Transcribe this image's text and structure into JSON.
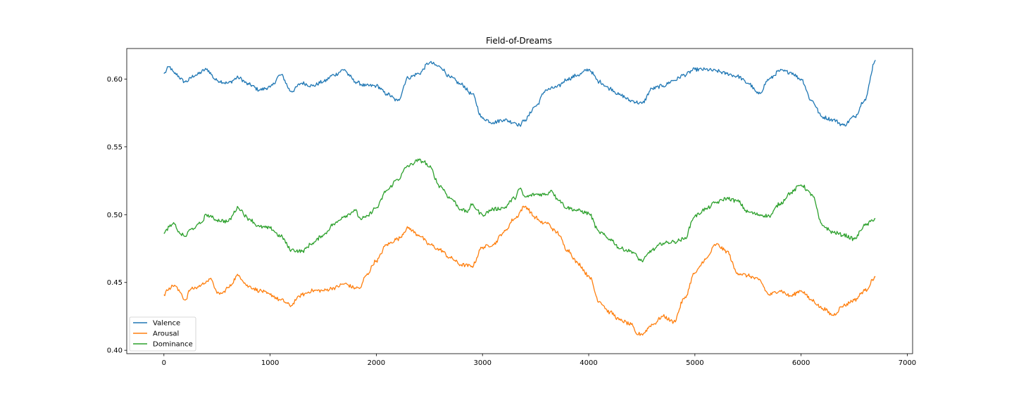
{
  "chart_data": {
    "type": "line",
    "title": "Field-of-Dreams",
    "xlabel": "",
    "ylabel": "",
    "xlim": [
      -350,
      7050
    ],
    "ylim": [
      0.3975,
      0.6225
    ],
    "xticks": [
      0,
      1000,
      2000,
      3000,
      4000,
      5000,
      6000,
      7000
    ],
    "xtick_labels": [
      "0",
      "1000",
      "2000",
      "3000",
      "4000",
      "5000",
      "6000",
      "7000"
    ],
    "yticks": [
      0.4,
      0.45,
      0.5,
      0.55,
      0.6
    ],
    "ytick_labels": [
      "0.40",
      "0.45",
      "0.50",
      "0.55",
      "0.60"
    ],
    "grid": false,
    "legend_position": "lower-left",
    "series": [
      {
        "name": "Valence",
        "color": "#1f77b4",
        "x": [
          0,
          50,
          100,
          200,
          300,
          400,
          500,
          600,
          700,
          800,
          900,
          1000,
          1100,
          1200,
          1300,
          1400,
          1500,
          1600,
          1700,
          1750,
          1800,
          1900,
          2000,
          2100,
          2200,
          2300,
          2400,
          2500,
          2600,
          2700,
          2800,
          2900,
          3000,
          3100,
          3200,
          3300,
          3350,
          3400,
          3500,
          3600,
          3700,
          3800,
          3900,
          4000,
          4100,
          4200,
          4300,
          4400,
          4500,
          4600,
          4700,
          4800,
          4900,
          5000,
          5100,
          5200,
          5300,
          5400,
          5500,
          5600,
          5700,
          5800,
          5900,
          6000,
          6100,
          6200,
          6300,
          6400,
          6500,
          6600,
          6700
        ],
        "values": [
          0.604,
          0.609,
          0.604,
          0.598,
          0.603,
          0.607,
          0.599,
          0.597,
          0.601,
          0.596,
          0.592,
          0.594,
          0.603,
          0.591,
          0.597,
          0.595,
          0.598,
          0.603,
          0.607,
          0.602,
          0.598,
          0.595,
          0.595,
          0.589,
          0.584,
          0.601,
          0.604,
          0.612,
          0.609,
          0.601,
          0.596,
          0.589,
          0.571,
          0.568,
          0.57,
          0.568,
          0.566,
          0.57,
          0.58,
          0.592,
          0.594,
          0.6,
          0.603,
          0.607,
          0.598,
          0.593,
          0.588,
          0.584,
          0.582,
          0.593,
          0.595,
          0.599,
          0.603,
          0.607,
          0.607,
          0.606,
          0.604,
          0.602,
          0.597,
          0.589,
          0.6,
          0.606,
          0.605,
          0.6,
          0.584,
          0.572,
          0.57,
          0.566,
          0.572,
          0.585,
          0.614
        ]
      },
      {
        "name": "Arousal",
        "color": "#ff7f0e",
        "x": [
          0,
          50,
          100,
          150,
          200,
          250,
          300,
          350,
          400,
          450,
          500,
          550,
          600,
          700,
          800,
          900,
          1000,
          1100,
          1200,
          1250,
          1300,
          1400,
          1500,
          1600,
          1700,
          1800,
          1850,
          1900,
          2000,
          2100,
          2200,
          2300,
          2400,
          2500,
          2600,
          2700,
          2800,
          2900,
          3000,
          3100,
          3200,
          3300,
          3400,
          3500,
          3550,
          3600,
          3700,
          3800,
          3900,
          4000,
          4100,
          4200,
          4300,
          4400,
          4450,
          4500,
          4600,
          4700,
          4800,
          4900,
          5000,
          5100,
          5200,
          5300,
          5400,
          5500,
          5600,
          5700,
          5800,
          5900,
          6000,
          6100,
          6200,
          6300,
          6400,
          6500,
          6600,
          6700
        ],
        "values": [
          0.441,
          0.446,
          0.448,
          0.443,
          0.437,
          0.445,
          0.446,
          0.448,
          0.451,
          0.452,
          0.442,
          0.442,
          0.446,
          0.455,
          0.447,
          0.444,
          0.441,
          0.437,
          0.433,
          0.438,
          0.441,
          0.444,
          0.444,
          0.446,
          0.449,
          0.446,
          0.446,
          0.455,
          0.466,
          0.478,
          0.482,
          0.49,
          0.485,
          0.478,
          0.474,
          0.468,
          0.463,
          0.462,
          0.476,
          0.478,
          0.487,
          0.497,
          0.506,
          0.498,
          0.494,
          0.494,
          0.487,
          0.474,
          0.464,
          0.455,
          0.436,
          0.428,
          0.422,
          0.419,
          0.412,
          0.412,
          0.419,
          0.425,
          0.421,
          0.438,
          0.457,
          0.467,
          0.478,
          0.473,
          0.457,
          0.455,
          0.452,
          0.441,
          0.444,
          0.44,
          0.444,
          0.437,
          0.431,
          0.426,
          0.433,
          0.437,
          0.444,
          0.454
        ]
      },
      {
        "name": "Dominance",
        "color": "#2ca02c",
        "x": [
          0,
          50,
          100,
          150,
          200,
          250,
          300,
          350,
          400,
          450,
          500,
          600,
          700,
          800,
          900,
          1000,
          1100,
          1200,
          1300,
          1400,
          1500,
          1600,
          1700,
          1800,
          1850,
          1900,
          2000,
          2100,
          2200,
          2300,
          2400,
          2450,
          2500,
          2600,
          2700,
          2800,
          2850,
          2900,
          3000,
          3100,
          3200,
          3300,
          3350,
          3400,
          3500,
          3600,
          3650,
          3700,
          3800,
          3900,
          4000,
          4100,
          4200,
          4300,
          4400,
          4500,
          4600,
          4700,
          4800,
          4900,
          5000,
          5100,
          5200,
          5300,
          5400,
          5500,
          5600,
          5700,
          5800,
          5900,
          6000,
          6100,
          6200,
          6300,
          6400,
          6500,
          6600,
          6700
        ],
        "values": [
          0.486,
          0.491,
          0.493,
          0.486,
          0.484,
          0.489,
          0.491,
          0.494,
          0.5,
          0.498,
          0.496,
          0.495,
          0.505,
          0.497,
          0.491,
          0.49,
          0.484,
          0.474,
          0.473,
          0.479,
          0.485,
          0.493,
          0.499,
          0.503,
          0.497,
          0.498,
          0.505,
          0.518,
          0.526,
          0.536,
          0.54,
          0.539,
          0.535,
          0.521,
          0.512,
          0.504,
          0.502,
          0.507,
          0.5,
          0.504,
          0.505,
          0.512,
          0.519,
          0.513,
          0.515,
          0.515,
          0.518,
          0.512,
          0.505,
          0.503,
          0.501,
          0.487,
          0.482,
          0.475,
          0.473,
          0.466,
          0.474,
          0.479,
          0.48,
          0.482,
          0.499,
          0.504,
          0.509,
          0.512,
          0.51,
          0.502,
          0.5,
          0.499,
          0.508,
          0.516,
          0.522,
          0.515,
          0.492,
          0.487,
          0.485,
          0.482,
          0.492,
          0.497
        ]
      }
    ]
  }
}
